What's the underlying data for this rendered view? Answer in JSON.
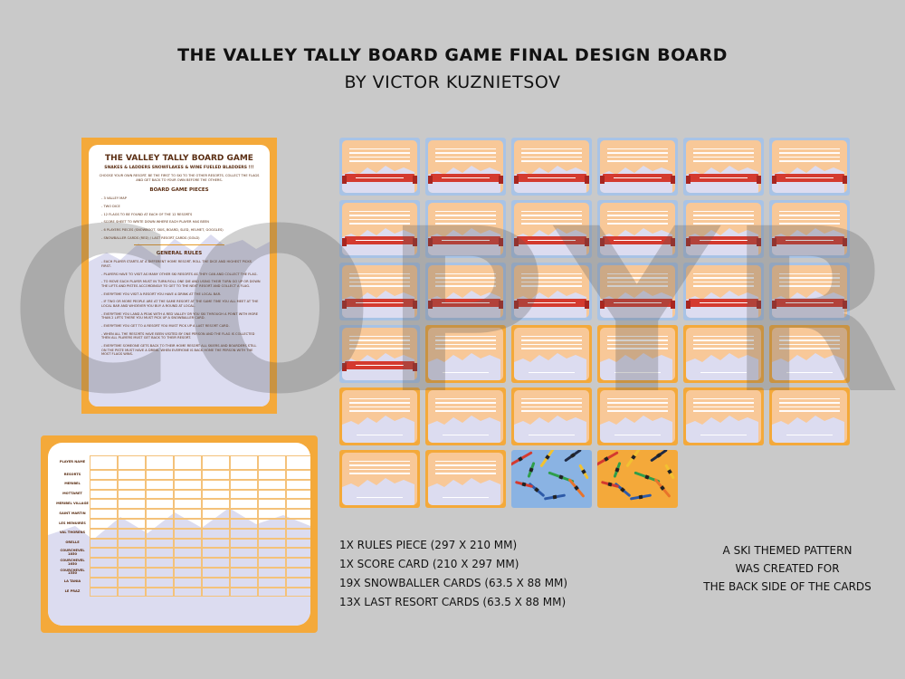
{
  "header": {
    "title": "THE VALLEY TALLY BOARD GAME FINAL DESIGN BOARD",
    "subtitle": "BY VICTOR KUZNIETSOV"
  },
  "watermark": "COPYRIGHT",
  "rules_piece": {
    "title": "THE VALLEY TALLY BOARD GAME",
    "subtitle": "SNAKES & LADDERS SNOWFLAKES & WINE FUELED BLADDERS !!!",
    "intro": "CHOOSE YOUR OWN RESORT. BE THE FIRST TO SKI TO THE OTHER RESORTS. COLLECT THE FLAGS AND GET BACK TO YOUR OWN BEFORE THE OTHERS.",
    "pieces_heading": "BOARD GAME PIECES",
    "pieces": [
      "3 VALLEY MAP",
      "TWO DICE",
      "12 FLAGS TO BE FOUND AT EACH OF THE 12 RESORTS",
      "SCORE SHEET TO WRITE DOWN WHERE EACH PLAYER HAS BEEN",
      "6 PLAYERS PIECES (SNOWBOOT, SKIS, BOARD, SLED, HELMET, GOGGLES)",
      "SNOWBALLER CARDS (RED) / LAST RESORT CARDS (GOLD)"
    ],
    "rules_heading": "GENERAL RULES",
    "rules": [
      "EACH PLAYER STARTS AT A DIFFERENT HOME RESORT. ROLL THE DICE AND HIGHEST PICKS FIRST.",
      "PLAYERS HAVE TO VISIT AS MANY OTHER SKI RESORTS AS THEY CAN AND COLLECT THE FLAG.",
      "TO MOVE EACH PLAYER MUST IN TURN ROLL ONE DIE AND USING THEIR TURN GO UP OR DOWN THE LIFTS AND PISTES ACCORDINGLY TO GET TO THE NEXT RESORT AND COLLECT A FLAG.",
      "EVERYTIME YOU VISIT A RESORT YOU HAVE A DRINK AT THE LOCAL BAR.",
      "IF TWO OR MORE PEOPLE ARE AT THE SAME RESORT AT THE SAME TIME YOU ALL MEET AT THE LOCAL BAR AND WHOEVER YOU BUY A ROUND AT LOCAL.",
      "EVERYTIME YOU LAND A PEAK WITH A RED VALLEY OR YOU SKI THROUGH A POINT WITH MORE THAN 2 LIFTS THERE YOU MUST PICK UP A SNOWBALLER CARD.",
      "EVERYTIME YOU GET TO A RESORT YOU MUST PICK UP A LAST RESORT CARD.",
      "WHEN ALL THE RESORTS HAVE BEEN VISITED BY ONE PERSON AND THE FLAG IS COLLECTED THEN ALL PLAYERS MUST GET BACK TO THEIR RESORT.",
      "EVERYTIME SOMEONE GETS BACK TO THEIR HOME RESORT ALL SKIERS AND BOARDERS STILL ON THE PISTE MUST HAVE A DRINK. WHEN EVERYONE IS BACK HOME THE PERSON WITH THE MOST FLAGS WINS."
    ]
  },
  "score_card": {
    "rows": [
      "PLAYER NAME",
      "RESORTS",
      "MERIBEL",
      "MOTTARET",
      "MERIBEL VILLAGE",
      "SAINT MARTIN",
      "LES MENUIRES",
      "VAL THORENS",
      "ORELLE",
      "COURCHEVEL 1850",
      "COURCHEVEL 1650",
      "COURCHEVEL 1550",
      "LA TANIA",
      "LE PRAZ"
    ],
    "columns": 8
  },
  "cards": {
    "snowballer_count": 19,
    "last_resort_count": 13,
    "back_count": 2
  },
  "info": {
    "lines": [
      "1X RULES PIECE (297 X 210 MM)",
      "1X SCORE CARD (210 X 297 MM)",
      "19X SNOWBALLER CARDS (63.5 X 88 MM)",
      "13X LAST RESORT CARDS (63.5 X 88 MM)"
    ]
  },
  "note": {
    "lines": [
      "A SKI THEMED PATTERN",
      "WAS CREATED FOR",
      "THE BACK SIDE OF THE CARDS"
    ]
  },
  "colors": {
    "background": "#c9c9c9",
    "orange": "#f4a93a",
    "blue": "#a8c3e6",
    "peach": "#f8c898",
    "ribbon": "#d43a2f",
    "mountain": "#dcdcf0"
  }
}
